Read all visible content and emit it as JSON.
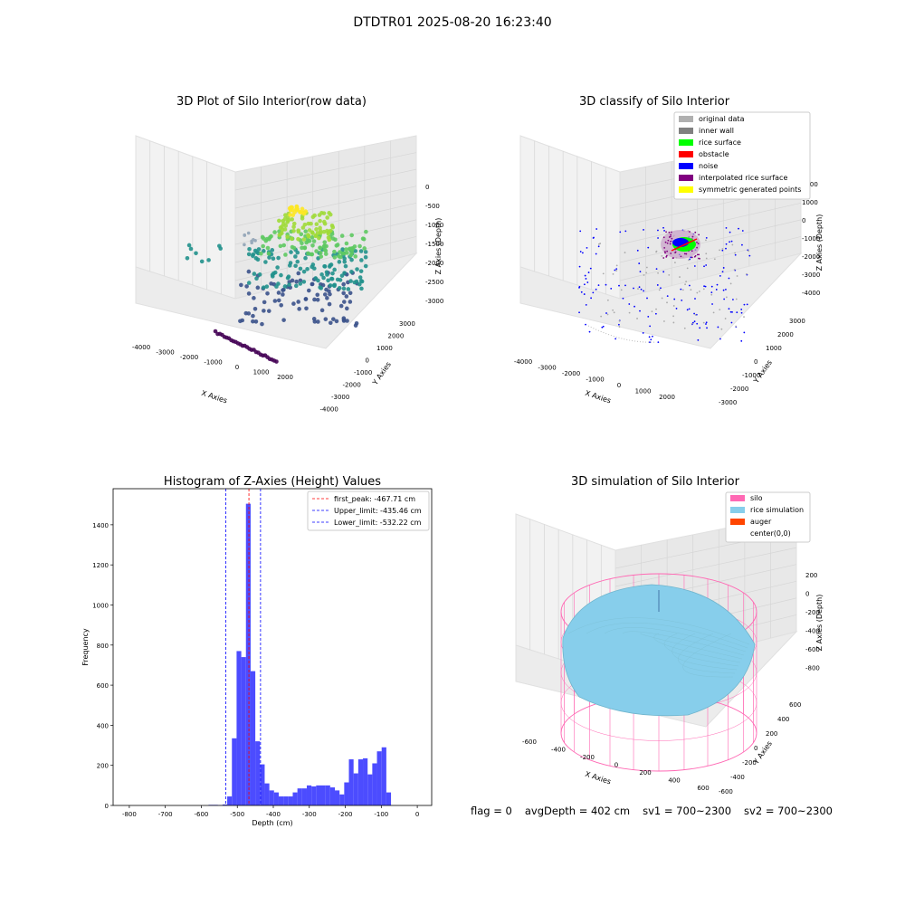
{
  "figure": {
    "suptitle": "DTDTR01 2025-08-20 16:23:40"
  },
  "status": {
    "flag": "flag = 0",
    "avg_depth": "avgDepth = 402 cm",
    "sv1": "sv1 = 700~2300",
    "sv2": "sv2 = 700~2300"
  },
  "chart_data": [
    {
      "type": "scatter",
      "subtype": "3d",
      "title": "3D Plot of Silo Interior(row data)",
      "xlabel": "X Axies",
      "ylabel": "Y Axies",
      "zlabel": "Z Axies (Depth)",
      "x_ticks": [
        "-4000",
        "-3000",
        "-2000",
        "-1000",
        "0",
        "1000",
        "2000"
      ],
      "y_ticks": [
        "-4000",
        "-3000",
        "-2000",
        "-1000",
        "0",
        "1000",
        "2000",
        "3000"
      ],
      "z_ticks": [
        "0",
        "-500",
        "-1000",
        "-1500",
        "-2000",
        "-2500",
        "-3000"
      ],
      "xlim": [
        -4300,
        2500
      ],
      "ylim": [
        -4300,
        3500
      ],
      "zlim": [
        -3300,
        200
      ],
      "colormap": "viridis",
      "grid": true
    },
    {
      "type": "scatter",
      "subtype": "3d",
      "title": "3D classify of Silo Interior",
      "xlabel": "X Axies",
      "ylabel": "Y Axies",
      "zlabel": "Z Axies (Depth)",
      "x_ticks": [
        "-4000",
        "-3000",
        "-2000",
        "-1000",
        "0",
        "1000",
        "2000"
      ],
      "y_ticks": [
        "-3000",
        "-2000",
        "-1000",
        "0",
        "1000",
        "2000",
        "3000"
      ],
      "z_ticks": [
        "2000",
        "1000",
        "0",
        "-1000",
        "-2000",
        "-3000",
        "-4000"
      ],
      "legend": [
        {
          "label": "original data",
          "color": "#b0b0b0"
        },
        {
          "label": "inner wall",
          "color": "#808080"
        },
        {
          "label": "rice surface",
          "color": "#00ff00"
        },
        {
          "label": "obstacle",
          "color": "#ff0000"
        },
        {
          "label": "noise",
          "color": "#0000ff"
        },
        {
          "label": "interpolated rice surface",
          "color": "#800080"
        },
        {
          "label": "symmetric generated points",
          "color": "#ffff00"
        }
      ],
      "legend_position": "top-right",
      "grid": true
    },
    {
      "type": "bar",
      "subtype": "histogram",
      "title": "Histogram of Z-Axies (Height) Values",
      "xlabel": "Depth (cm)",
      "ylabel": "Frequency",
      "xlim": [
        -845,
        40
      ],
      "ylim": [
        0,
        1580
      ],
      "x_ticks": [
        -800,
        -700,
        -600,
        -500,
        -400,
        -300,
        -200,
        -100,
        0
      ],
      "y_ticks": [
        0,
        200,
        400,
        600,
        800,
        1000,
        1200,
        1400
      ],
      "bar_color": "#4c4cff",
      "bins": [
        [
          -580,
          -567,
          3
        ],
        [
          -567,
          -554,
          3
        ],
        [
          -554,
          -541,
          2
        ],
        [
          -541,
          -528,
          5
        ],
        [
          -528,
          -515,
          45
        ],
        [
          -515,
          -502,
          335
        ],
        [
          -502,
          -489,
          770
        ],
        [
          -489,
          -476,
          740
        ],
        [
          -476,
          -463,
          1505
        ],
        [
          -463,
          -450,
          670
        ],
        [
          -450,
          -437,
          320
        ],
        [
          -437,
          -424,
          205
        ],
        [
          -424,
          -411,
          110
        ],
        [
          -411,
          -398,
          75
        ],
        [
          -398,
          -385,
          65
        ],
        [
          -385,
          -372,
          45
        ],
        [
          -372,
          -359,
          45
        ],
        [
          -359,
          -346,
          45
        ],
        [
          -346,
          -333,
          65
        ],
        [
          -333,
          -320,
          85
        ],
        [
          -320,
          -307,
          85
        ],
        [
          -307,
          -294,
          100
        ],
        [
          -294,
          -281,
          95
        ],
        [
          -281,
          -268,
          100
        ],
        [
          -268,
          -255,
          100
        ],
        [
          -255,
          -242,
          100
        ],
        [
          -242,
          -229,
          90
        ],
        [
          -229,
          -216,
          75
        ],
        [
          -216,
          -203,
          55
        ],
        [
          -203,
          -190,
          115
        ],
        [
          -190,
          -177,
          230
        ],
        [
          -177,
          -164,
          160
        ],
        [
          -164,
          -151,
          230
        ],
        [
          -151,
          -138,
          235
        ],
        [
          -138,
          -125,
          155
        ],
        [
          -125,
          -112,
          210
        ],
        [
          -112,
          -99,
          270
        ],
        [
          -99,
          -86,
          290
        ],
        [
          -86,
          -73,
          65
        ]
      ],
      "vlines": [
        {
          "label": "first_peak: -467.71 cm",
          "x": -467.71,
          "color": "#ff0000"
        },
        {
          "label": "Upper_limit: -435.46 cm",
          "x": -435.46,
          "color": "#0000ff"
        },
        {
          "label": "Lower_limit: -532.22 cm",
          "x": -532.22,
          "color": "#0000ff"
        }
      ],
      "legend_position": "top-right"
    },
    {
      "type": "area",
      "subtype": "3d-surface",
      "title": "3D simulation of Silo Interior",
      "xlabel": "X Axies",
      "ylabel": "Y Axies",
      "zlabel": "Z Axies (Depth)",
      "x_ticks": [
        "-600",
        "-400",
        "-200",
        "0",
        "200",
        "400",
        "600"
      ],
      "y_ticks": [
        "-600",
        "-400",
        "-200",
        "0",
        "200",
        "400",
        "600"
      ],
      "z_ticks": [
        "200",
        "0",
        "-200",
        "-400",
        "-600",
        "-800"
      ],
      "legend": [
        {
          "label": "silo",
          "color": "#ff69b4"
        },
        {
          "label": "rice simulation",
          "color": "#87ceeb"
        },
        {
          "label": "auger",
          "color": "#ff4500"
        },
        {
          "label": "center(0,0)",
          "color": ""
        }
      ],
      "legend_position": "top-right",
      "grid": true
    }
  ]
}
